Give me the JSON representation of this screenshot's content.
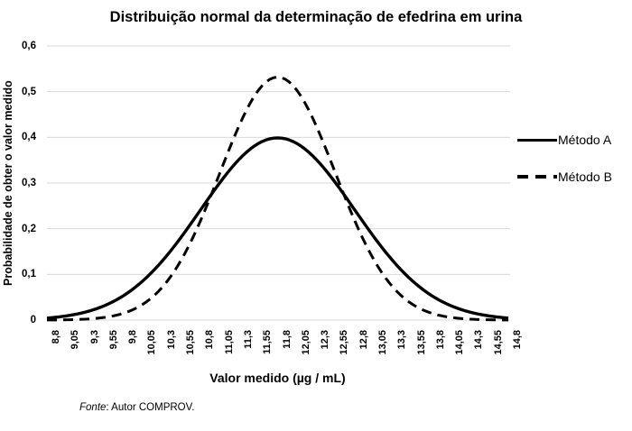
{
  "chart_data": {
    "type": "line",
    "title": "Distribuição normal da determinação de efedrina em urina",
    "xlabel": "Valor medido (µg / mL)",
    "ylabel": "Probabilidade de obter o valor medido",
    "xlim": [
      8.8,
      14.8
    ],
    "ylim": [
      0,
      0.6
    ],
    "grid": "horizontal",
    "legend_position": "right",
    "x_tick_labels": [
      "8,8",
      "9,05",
      "9,3",
      "9,55",
      "9,8",
      "10,05",
      "10,3",
      "10,55",
      "10,8",
      "11,05",
      "11,3",
      "11,55",
      "11,8",
      "12,05",
      "12,3",
      "12,55",
      "12,8",
      "13,05",
      "13,3",
      "13,55",
      "13,8",
      "14,05",
      "14,3",
      "14,55",
      "14,8"
    ],
    "x_values": [
      8.8,
      9.05,
      9.3,
      9.55,
      9.8,
      10.05,
      10.3,
      10.55,
      10.8,
      11.05,
      11.3,
      11.55,
      11.8,
      12.05,
      12.3,
      12.55,
      12.8,
      13.05,
      13.3,
      13.55,
      13.8,
      14.05,
      14.3,
      14.55,
      14.8
    ],
    "y_tick_labels": [
      "0",
      "0,1",
      "0,2",
      "0,3",
      "0,4",
      "0,5",
      "0,6"
    ],
    "y_ticks": [
      0,
      0.1,
      0.2,
      0.3,
      0.4,
      0.5,
      0.6
    ],
    "series": [
      {
        "name": "Método A",
        "line_style": "solid",
        "color": "#000000",
        "distribution": {
          "type": "normal",
          "mean": 11.8,
          "sigma": 1.0,
          "peak": 0.3989
        },
        "values": [
          0.0044,
          0.0091,
          0.0175,
          0.0317,
          0.054,
          0.0863,
          0.1295,
          0.1826,
          0.242,
          0.3011,
          0.3521,
          0.3867,
          0.3989,
          0.3867,
          0.3521,
          0.3011,
          0.242,
          0.1826,
          0.1295,
          0.0863,
          0.054,
          0.0317,
          0.0175,
          0.0091,
          0.0044
        ]
      },
      {
        "name": "Método B",
        "line_style": "dashed",
        "color": "#000000",
        "distribution": {
          "type": "normal",
          "mean": 11.8,
          "sigma": 0.75,
          "peak": 0.5319
        },
        "values": [
          0.0002,
          0.0006,
          0.0021,
          0.0059,
          0.0152,
          0.035,
          0.072,
          0.1326,
          0.2187,
          0.3226,
          0.4259,
          0.5032,
          0.5319,
          0.5032,
          0.4259,
          0.3226,
          0.2187,
          0.1326,
          0.072,
          0.035,
          0.0152,
          0.0059,
          0.0021,
          0.0006,
          0.0002
        ]
      }
    ]
  },
  "legend": {
    "item_a": "Método A",
    "item_b": "Método B"
  },
  "footer": {
    "source_label": "Fonte",
    "source_text": ": Autor COMPROV."
  },
  "colors": {
    "line": "#000000",
    "grid": "#d9d9d9",
    "text": "#000000",
    "background": "#ffffff"
  }
}
